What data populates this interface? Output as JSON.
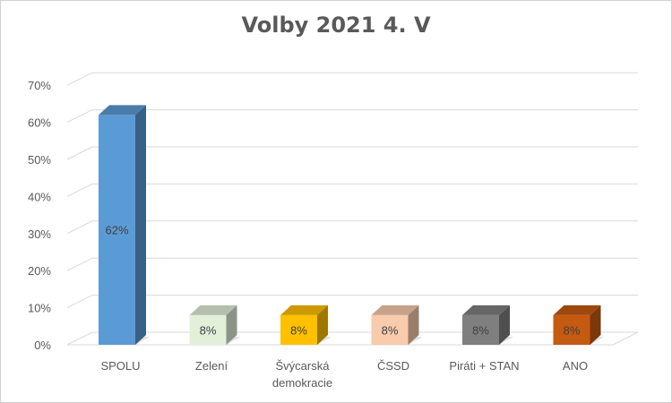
{
  "chart_data": {
    "type": "bar",
    "title": "Volby 2021 4. V",
    "categories": [
      "SPOLU",
      "Zelení",
      "Švýcarská demokracie",
      "ČSSD",
      "Piráti + STAN",
      "ANO"
    ],
    "category_lines": [
      [
        "SPOLU"
      ],
      [
        "Zelení"
      ],
      [
        "Švýcarská",
        "demokracie"
      ],
      [
        "ČSSD"
      ],
      [
        "Piráti + STAN"
      ],
      [
        "ANO"
      ]
    ],
    "values": [
      62,
      8,
      8,
      8,
      8,
      8
    ],
    "data_labels": [
      "62%",
      "8%",
      "8%",
      "8%",
      "8%",
      "8%"
    ],
    "colors": [
      "#5b9bd5",
      "#e2efd9",
      "#ffc000",
      "#f8cbad",
      "#7f7f7f",
      "#c55a11"
    ],
    "ylim": [
      0,
      70
    ],
    "yticks": [
      "0%",
      "10%",
      "20%",
      "30%",
      "40%",
      "50%",
      "60%",
      "70%"
    ],
    "grid": true,
    "style": "3d-column",
    "legend": "none"
  }
}
